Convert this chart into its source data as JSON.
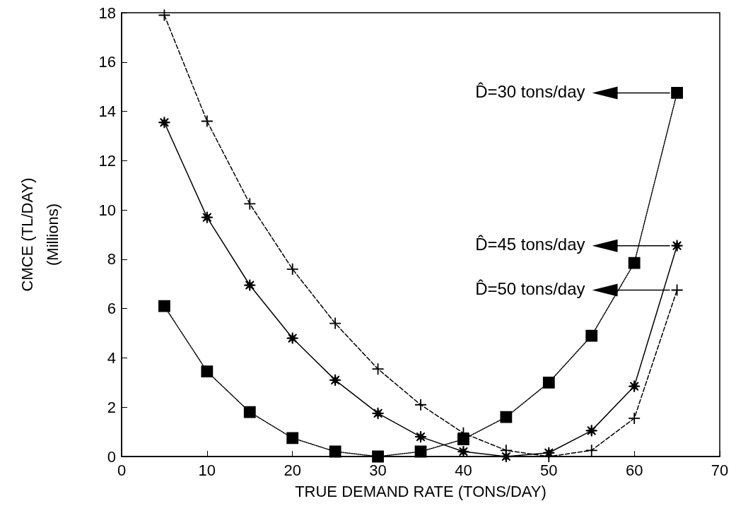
{
  "chart_data": {
    "type": "line",
    "xlabel": "TRUE DEMAND RATE (TONS/DAY)",
    "ylabel": "CMCE (TL/DAY)\n(Millions)",
    "x": [
      5,
      10,
      15,
      20,
      25,
      30,
      35,
      40,
      45,
      50,
      55,
      60,
      65
    ],
    "series": [
      {
        "color": "#000000",
        "marker": "square",
        "line_style": "dotted",
        "values": [
          6.1,
          3.45,
          1.8,
          0.75,
          0.2,
          0,
          0.2,
          0.7,
          1.6,
          3.0,
          4.9,
          7.85,
          14.75
        ]
      },
      {
        "color": "#000000",
        "marker": "star",
        "line_style": "solid",
        "values": [
          13.55,
          9.7,
          6.95,
          4.8,
          3.1,
          1.75,
          0.8,
          0.2,
          0,
          0.15,
          1.05,
          2.85,
          8.55
        ]
      },
      {
        "color": "#000000",
        "marker": "cross",
        "line_style": "dashed",
        "values": [
          17.9,
          13.6,
          10.25,
          7.6,
          5.4,
          3.55,
          2.1,
          0.95,
          0.25,
          0,
          0.25,
          1.55,
          6.75
        ]
      }
    ],
    "xlim": [
      0,
      70
    ],
    "xticks": [
      0,
      10,
      20,
      30,
      40,
      50,
      60,
      70
    ],
    "ylim": [
      0,
      18
    ],
    "yticks": [
      0,
      2,
      4,
      6,
      8,
      10,
      12,
      14,
      16,
      18
    ],
    "grid": false,
    "annotations": [
      "D̂=30 tons/day",
      "D̂=45 tons/day",
      "D̂=50 tons/day"
    ]
  }
}
